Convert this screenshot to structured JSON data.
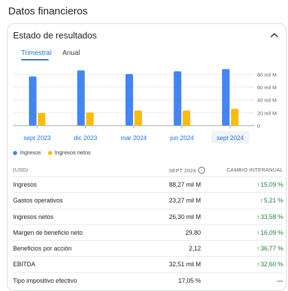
{
  "page": {
    "title": "Datos financieros"
  },
  "card": {
    "header": "Estado de resultados"
  },
  "tabs": [
    {
      "label": "Trimestral",
      "active": true
    },
    {
      "label": "Anual",
      "active": false
    }
  ],
  "chart_data": {
    "type": "bar",
    "categories": [
      "sept 2023",
      "dic 2023",
      "mar 2024",
      "jun 2024",
      "sept 2024"
    ],
    "selected_category": "sept 2024",
    "series": [
      {
        "name": "Ingresos",
        "color": "#4285f4",
        "values": [
          76.69,
          86.31,
          80.54,
          84.74,
          88.27
        ]
      },
      {
        "name": "Ingresos netos",
        "color": "#fbbc04",
        "values": [
          19.69,
          20.69,
          23.66,
          23.62,
          26.3
        ]
      }
    ],
    "y_ticks": [
      "0",
      "20 mil M",
      "40 mil M",
      "60 mil M",
      "80 mil M"
    ],
    "ylim": [
      0,
      90
    ],
    "grid": true
  },
  "table": {
    "header": {
      "col1": "(USD)",
      "col2": "SEPT 2024",
      "col3": "CAMBIO INTERANUAL"
    },
    "rows": [
      {
        "label": "Ingresos",
        "value": "88,27 mil M",
        "change": "15,09 %",
        "direction": "up"
      },
      {
        "label": "Gastos operativos",
        "value": "23,27 mil M",
        "change": "5,21 %",
        "direction": "up"
      },
      {
        "label": "Ingresos netos",
        "value": "26,30 mil M",
        "change": "33,58 %",
        "direction": "up"
      },
      {
        "label": "Margen de beneficio neto",
        "value": "29,80",
        "change": "16,09 %",
        "direction": "up"
      },
      {
        "label": "Beneficios por acción",
        "value": "2,12",
        "change": "36,77 %",
        "direction": "up"
      },
      {
        "label": "EBITDA",
        "value": "32,51 mil M",
        "change": "32,60 %",
        "direction": "up"
      },
      {
        "label": "Tipo impositivo efectivo",
        "value": "17,05 %",
        "change": "—",
        "direction": "none"
      }
    ]
  },
  "icons": {
    "collapse": "chevron-up-icon",
    "info": "info-icon",
    "up_arrow": "arrow-up-icon"
  },
  "colors": {
    "accent": "#1a73e8",
    "positive": "#188038",
    "grid": "#e8eaed"
  }
}
